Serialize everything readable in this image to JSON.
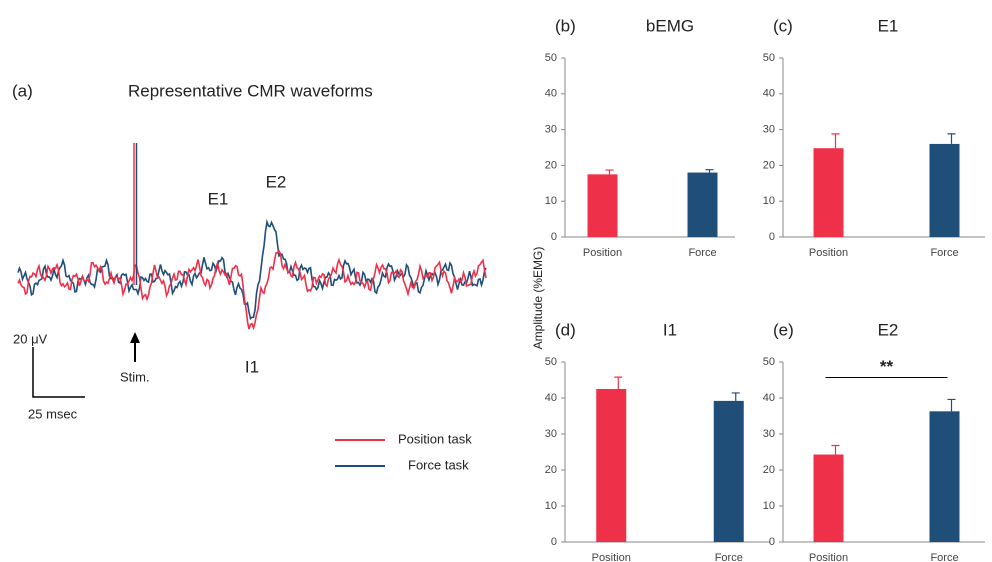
{
  "panel_a": {
    "label": "(a)",
    "title": "Representative CMR waveforms",
    "peaks": [
      "E1",
      "E2",
      "I1"
    ],
    "stim": "Stim.",
    "scale_y": "20 μV",
    "scale_x": "25 msec",
    "legend": [
      {
        "name": "Position task",
        "color": "#ef3049"
      },
      {
        "name": "Force task",
        "color": "#1f4e79"
      }
    ]
  },
  "y_label": "Amplitude (%EMG)",
  "chart_data": [
    {
      "type": "bar",
      "label": "(b)",
      "title": "bEMG",
      "categories": [
        "Position",
        "Force"
      ],
      "values": [
        17.5,
        18
      ],
      "errors": [
        1.2,
        0.8
      ],
      "colors": [
        "#ef3049",
        "#1f4e79"
      ],
      "ylim": [
        0,
        50
      ],
      "yticks": [
        0,
        10,
        20,
        30,
        40,
        50
      ]
    },
    {
      "type": "bar",
      "label": "(c)",
      "title": "E1",
      "categories": [
        "Position",
        "Force"
      ],
      "values": [
        24.8,
        26
      ],
      "errors": [
        4,
        2.8
      ],
      "colors": [
        "#ef3049",
        "#1f4e79"
      ],
      "ylim": [
        0,
        50
      ],
      "yticks": [
        0,
        10,
        20,
        30,
        40,
        50
      ]
    },
    {
      "type": "bar",
      "label": "(d)",
      "title": "I1",
      "categories": [
        "Position",
        "Force"
      ],
      "values": [
        42.5,
        39.2
      ],
      "errors": [
        3.3,
        2.2
      ],
      "colors": [
        "#ef3049",
        "#1f4e79"
      ],
      "ylim": [
        0,
        50
      ],
      "yticks": [
        0,
        10,
        20,
        30,
        40,
        50
      ]
    },
    {
      "type": "bar",
      "label": "(e)",
      "title": "E2",
      "categories": [
        "Position",
        "Force"
      ],
      "values": [
        24.3,
        36.3
      ],
      "errors": [
        2.5,
        3.3
      ],
      "colors": [
        "#ef3049",
        "#1f4e79"
      ],
      "ylim": [
        0,
        50
      ],
      "yticks": [
        0,
        10,
        20,
        30,
        40,
        50
      ],
      "annotation": "**"
    }
  ]
}
